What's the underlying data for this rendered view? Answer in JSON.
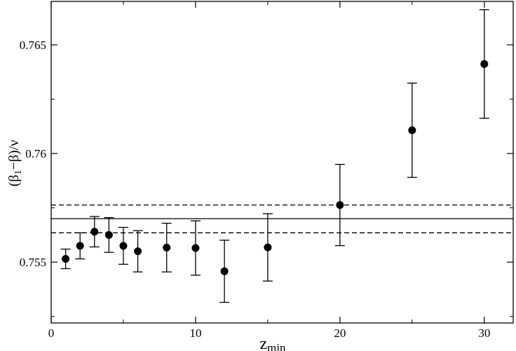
{
  "chart_data": {
    "type": "scatter",
    "title": "",
    "xlabel": {
      "main": "z",
      "sub": "min"
    },
    "ylabel": {
      "pre": "(β",
      "sub": "1",
      "post": "−β)/ν"
    },
    "xlim": [
      0,
      32
    ],
    "ylim": [
      0.7522,
      0.767
    ],
    "x_ticks": [
      0,
      10,
      20,
      30
    ],
    "x_tick_labels": [
      "0",
      "10",
      "20",
      "30"
    ],
    "y_ticks": [
      0.755,
      0.76,
      0.765
    ],
    "y_tick_labels": [
      "0.755",
      "0.76",
      "0.765"
    ],
    "grid": false,
    "points": [
      {
        "x": 1,
        "y": 0.75515,
        "err": 0.00045
      },
      {
        "x": 2,
        "y": 0.75575,
        "err": 0.0006
      },
      {
        "x": 3,
        "y": 0.7564,
        "err": 0.0007
      },
      {
        "x": 4,
        "y": 0.75625,
        "err": 0.0008
      },
      {
        "x": 5,
        "y": 0.75575,
        "err": 0.00085
      },
      {
        "x": 6,
        "y": 0.7555,
        "err": 0.00095
      },
      {
        "x": 8,
        "y": 0.75567,
        "err": 0.00112
      },
      {
        "x": 10,
        "y": 0.75565,
        "err": 0.00125
      },
      {
        "x": 12,
        "y": 0.75458,
        "err": 0.00143
      },
      {
        "x": 15,
        "y": 0.75568,
        "err": 0.00155
      },
      {
        "x": 20,
        "y": 0.75763,
        "err": 0.00187
      },
      {
        "x": 25,
        "y": 0.76107,
        "err": 0.00217
      },
      {
        "x": 30,
        "y": 0.76412,
        "err": 0.0025
      }
    ],
    "fit_line": 0.757,
    "band_lines": [
      0.75763,
      0.75635
    ]
  }
}
